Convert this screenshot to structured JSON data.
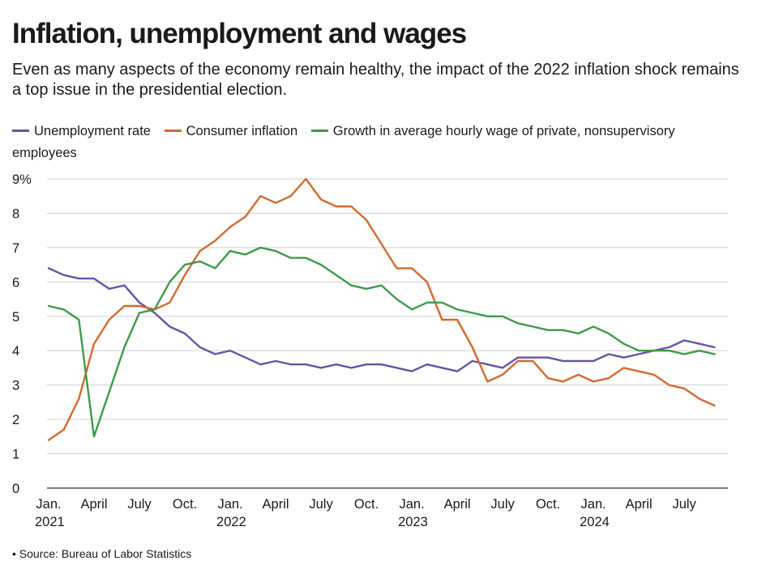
{
  "title": "Inflation, unemployment and wages",
  "subtitle": "Even as many aspects of the economy remain healthy, the impact of the 2022 inflation shock remains a top issue in the presidential election.",
  "source": "Source: Bureau of Labor Statistics",
  "colors": {
    "unemployment": "#6a52a3",
    "inflation": "#d46a2c",
    "wages": "#3e9a4b",
    "grid": "#cfcfcf"
  },
  "chart_data": {
    "type": "line",
    "title": "Inflation, unemployment and wages",
    "xlabel": "",
    "ylabel": "",
    "ylim": [
      0,
      9
    ],
    "y_ticks": [
      "0",
      "1",
      "2",
      "3",
      "4",
      "5",
      "6",
      "7",
      "8",
      "9%"
    ],
    "x_ticks": [
      {
        "index": 0,
        "label": "Jan.",
        "year": "2021"
      },
      {
        "index": 3,
        "label": "April",
        "year": ""
      },
      {
        "index": 6,
        "label": "July",
        "year": ""
      },
      {
        "index": 9,
        "label": "Oct.",
        "year": ""
      },
      {
        "index": 12,
        "label": "Jan.",
        "year": "2022"
      },
      {
        "index": 15,
        "label": "April",
        "year": ""
      },
      {
        "index": 18,
        "label": "July",
        "year": ""
      },
      {
        "index": 21,
        "label": "Oct.",
        "year": ""
      },
      {
        "index": 24,
        "label": "Jan.",
        "year": "2023"
      },
      {
        "index": 27,
        "label": "April",
        "year": ""
      },
      {
        "index": 30,
        "label": "July",
        "year": ""
      },
      {
        "index": 33,
        "label": "Oct.",
        "year": ""
      },
      {
        "index": 36,
        "label": "Jan.",
        "year": "2024"
      },
      {
        "index": 39,
        "label": "April",
        "year": ""
      },
      {
        "index": 42,
        "label": "July",
        "year": ""
      }
    ],
    "n_months": 45,
    "series": [
      {
        "name": "Unemployment rate",
        "key": "unemployment",
        "values": [
          6.4,
          6.2,
          6.1,
          6.1,
          5.8,
          5.9,
          5.4,
          5.1,
          4.7,
          4.5,
          4.1,
          3.9,
          4.0,
          3.8,
          3.6,
          3.7,
          3.6,
          3.6,
          3.5,
          3.6,
          3.5,
          3.6,
          3.6,
          3.5,
          3.4,
          3.6,
          3.5,
          3.4,
          3.7,
          3.6,
          3.5,
          3.8,
          3.8,
          3.8,
          3.7,
          3.7,
          3.7,
          3.9,
          3.8,
          3.9,
          4.0,
          4.1,
          4.3,
          4.2,
          4.1
        ]
      },
      {
        "name": "Consumer inflation",
        "key": "inflation",
        "values": [
          1.4,
          1.7,
          2.6,
          4.2,
          4.9,
          5.3,
          5.3,
          5.2,
          5.4,
          6.2,
          6.9,
          7.2,
          7.6,
          7.9,
          8.5,
          8.3,
          8.5,
          9.0,
          8.4,
          8.2,
          8.2,
          7.8,
          7.1,
          6.4,
          6.4,
          6.0,
          4.9,
          4.9,
          4.1,
          3.1,
          3.3,
          3.7,
          3.7,
          3.2,
          3.1,
          3.3,
          3.1,
          3.2,
          3.5,
          3.4,
          3.3,
          3.0,
          2.9,
          2.6,
          2.4
        ]
      },
      {
        "name": "Growth in average hourly wage of private, nonsupervisory employees",
        "key": "wages",
        "values": [
          5.3,
          5.2,
          4.9,
          1.5,
          2.8,
          4.1,
          5.1,
          5.2,
          6.0,
          6.5,
          6.6,
          6.4,
          6.9,
          6.8,
          7.0,
          6.9,
          6.7,
          6.7,
          6.5,
          6.2,
          5.9,
          5.8,
          5.9,
          5.5,
          5.2,
          5.4,
          5.4,
          5.2,
          5.1,
          5.0,
          5.0,
          4.8,
          4.7,
          4.6,
          4.6,
          4.5,
          4.7,
          4.5,
          4.2,
          4.0,
          4.0,
          4.0,
          3.9,
          4.0,
          3.9
        ]
      }
    ]
  }
}
